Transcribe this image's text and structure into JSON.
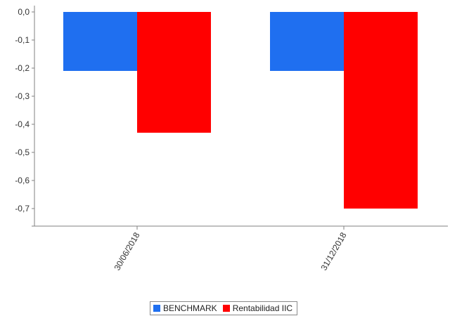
{
  "chart_data": {
    "type": "bar",
    "title": "",
    "xlabel": "",
    "ylabel": "",
    "categories": [
      "30/06/2018",
      "31/12/2018"
    ],
    "series": [
      {
        "name": "BENCHMARK",
        "color": "#1f6ff0",
        "values": [
          -0.21,
          -0.21
        ]
      },
      {
        "name": "Rentabilidad IIC",
        "color": "#ff0000",
        "values": [
          -0.43,
          -0.7
        ]
      }
    ],
    "ylim": [
      -0.78,
      0.0
    ],
    "yticks": [
      "0,0",
      "-0,1",
      "-0,2",
      "-0,3",
      "-0,4",
      "-0,5",
      "-0,6",
      "-0,7"
    ],
    "ytick_values": [
      0.0,
      -0.1,
      -0.2,
      -0.3,
      -0.4,
      -0.5,
      -0.6,
      -0.7
    ],
    "grid": false,
    "legend_position": "bottom"
  }
}
